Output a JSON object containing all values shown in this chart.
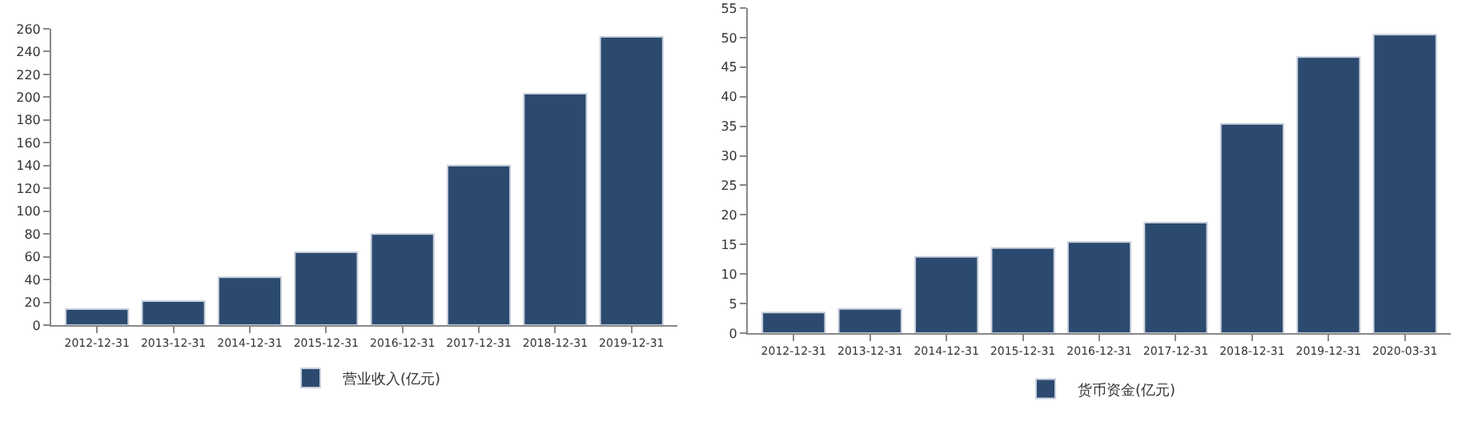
{
  "chart_data": [
    {
      "type": "bar",
      "categories": [
        "2012-12-31",
        "2013-12-31",
        "2014-12-31",
        "2015-12-31",
        "2016-12-31",
        "2017-12-31",
        "2018-12-31",
        "2019-12-31"
      ],
      "series": [
        {
          "name": "营业收入(亿元)",
          "color": "#2c4a70",
          "values": [
            14,
            21,
            42,
            64,
            80,
            140,
            203,
            253
          ]
        }
      ],
      "ylim": [
        0,
        260
      ],
      "yticks": [
        0,
        20,
        40,
        60,
        80,
        100,
        120,
        140,
        160,
        180,
        200,
        220,
        240,
        260
      ],
      "grid": false,
      "legend": "bottom"
    },
    {
      "type": "bar",
      "categories": [
        "2012-12-31",
        "2013-12-31",
        "2014-12-31",
        "2015-12-31",
        "2016-12-31",
        "2017-12-31",
        "2018-12-31",
        "2019-12-31",
        "2020-03-31"
      ],
      "series": [
        {
          "name": "货币资金(亿元)",
          "color": "#2c4a70",
          "values": [
            3.5,
            4.1,
            12.9,
            14.4,
            15.4,
            18.7,
            35.4,
            46.7,
            50.5
          ]
        }
      ],
      "ylim": [
        0,
        55
      ],
      "yticks": [
        0,
        5,
        10,
        15,
        20,
        25,
        30,
        35,
        40,
        45,
        50,
        55
      ],
      "grid": false,
      "legend": "bottom"
    }
  ]
}
